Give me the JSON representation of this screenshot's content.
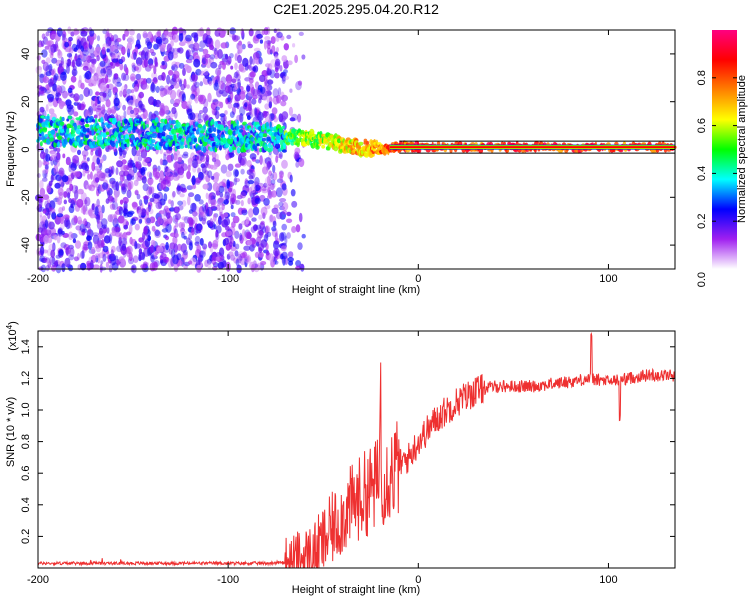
{
  "page": {
    "title": "C2E1.2025.295.04.20.R12"
  },
  "chart_data": [
    {
      "type": "heatmap",
      "title": "C2E1.2025.295.04.20.R12",
      "xlabel": "Height of straight line (km)",
      "ylabel": "Frequency (Hz)",
      "xlim": [
        -200,
        135
      ],
      "ylim": [
        -50,
        50
      ],
      "xticks": [
        -200,
        -100,
        0,
        100
      ],
      "xtick_labels": [
        "-200",
        "-100",
        "0",
        "100"
      ],
      "yticks": [
        -40,
        -20,
        0,
        20,
        40
      ],
      "ytick_labels": [
        "-40",
        "-20",
        "0",
        "20",
        "40"
      ],
      "colorbar": {
        "label": "Normalized spectral amplitude",
        "range": [
          0,
          1
        ],
        "ticks": [
          0.2,
          0.4,
          0.6,
          0.8
        ],
        "tick_labels": [
          "0.2",
          "0.4",
          "0.6",
          "0.8"
        ],
        "bottom_label": "0.0",
        "colors": [
          "#ffffff",
          "#a020f0",
          "#0000ff",
          "#00ffff",
          "#00ff00",
          "#ffff00",
          "#ff8000",
          "#ff0000",
          "#ff0080"
        ]
      },
      "ridge": {
        "description_points_x": [
          -200,
          -80,
          -60,
          -40,
          -20,
          -10,
          0,
          5,
          10,
          135
        ],
        "description_points_y": [
          8,
          5,
          5,
          2,
          0,
          1,
          1,
          1,
          1,
          1
        ]
      },
      "grid": false
    },
    {
      "type": "line",
      "xlabel": "Height of straight line (km)",
      "ylabel": "SNR (10 * v/v)",
      "y_multiplier_label": "(x10",
      "y_multiplier_exp": "4",
      "y_multiplier_close": ")",
      "xlim": [
        -200,
        135
      ],
      "ylim": [
        0,
        1.5
      ],
      "xticks": [
        -200,
        -100,
        0,
        100
      ],
      "xtick_labels": [
        "-200",
        "-100",
        "0",
        "100"
      ],
      "yticks": [
        0.2,
        0.4,
        0.6,
        0.8,
        1.0,
        1.2,
        1.4
      ],
      "ytick_labels": [
        "0.2",
        "0.4",
        "0.6",
        "0.8",
        "1.0",
        "1.2",
        "1.4"
      ],
      "color": "#ee3030",
      "trend_x": [
        -200,
        -80,
        -65,
        -55,
        -45,
        -35,
        -25,
        -15,
        -5,
        0,
        10,
        20,
        30,
        40,
        60,
        80,
        90,
        100,
        110,
        120,
        135
      ],
      "trend_y": [
        0.03,
        0.03,
        0.04,
        0.08,
        0.25,
        0.4,
        0.5,
        0.6,
        0.7,
        0.8,
        0.95,
        1.05,
        1.12,
        1.15,
        1.15,
        1.18,
        1.2,
        1.18,
        1.2,
        1.22,
        1.22
      ],
      "grid": false
    }
  ]
}
